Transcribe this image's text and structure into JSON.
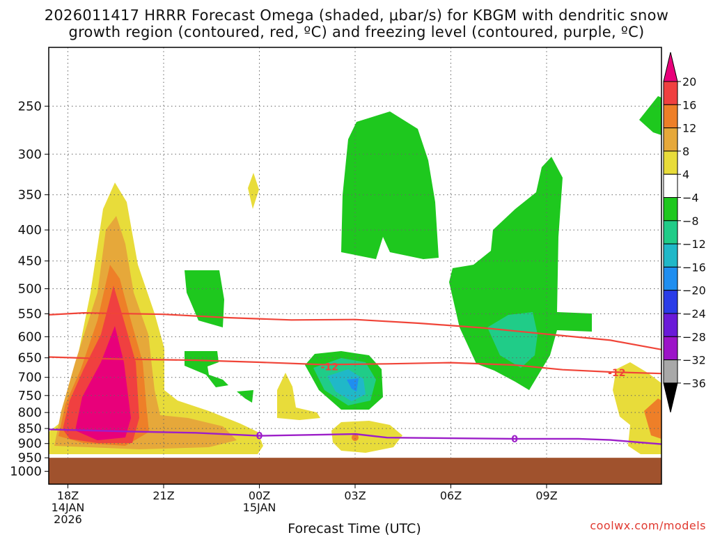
{
  "title": {
    "line1": "2026011417 HRRR Forecast Omega (shaded, μbar/s) for KBGM with dendritic snow",
    "line2": "growth region (contoured, red, ºC) and freezing level (contoured, purple, ºC)"
  },
  "credit": "coolwx.com/models",
  "chart_data": {
    "type": "contour",
    "xlabel": "Forecast Time (UTC)",
    "ylabel": "",
    "x_range_hours": [
      -0.6,
      18.6
    ],
    "y_range_hpa": [
      200,
      1050
    ],
    "y_scale": "log-pressure",
    "grid": true,
    "x_ticks": [
      {
        "h": 0,
        "lines": [
          "18Z",
          "14JAN",
          "2026"
        ]
      },
      {
        "h": 3,
        "lines": [
          "21Z"
        ]
      },
      {
        "h": 6,
        "lines": [
          "00Z",
          "15JAN"
        ]
      },
      {
        "h": 9,
        "lines": [
          "03Z"
        ]
      },
      {
        "h": 12,
        "lines": [
          "06Z"
        ]
      },
      {
        "h": 15,
        "lines": [
          "09Z"
        ]
      }
    ],
    "y_ticks": [
      250,
      300,
      350,
      400,
      450,
      500,
      550,
      600,
      650,
      700,
      750,
      800,
      850,
      900,
      950,
      1000
    ],
    "ground_pressure_hpa": 950,
    "colorbar": {
      "labels": [
        "20",
        "16",
        "12",
        "8",
        "4",
        "−4",
        "−8",
        "−12",
        "−16",
        "−20",
        "−24",
        "−28",
        "−32",
        "−36"
      ],
      "colors": [
        "#e8007a",
        "#f04040",
        "#ee7f28",
        "#e6a83a",
        "#e8dc3a",
        "#ffffff",
        "#1ec81e",
        "#20cc88",
        "#20b8c8",
        "#1f8ef0",
        "#2a3ce8",
        "#6a1ad8",
        "#9c14c8",
        "#a8a8a8",
        "#000000"
      ]
    },
    "dgz_contours": [
      {
        "value": -12,
        "label": "-12",
        "color": "#f04438",
        "points": [
          [
            -0.6,
            552
          ],
          [
            0.5,
            548
          ],
          [
            3,
            551
          ],
          [
            5,
            558
          ],
          [
            7,
            563
          ],
          [
            9,
            562
          ],
          [
            11,
            570
          ],
          [
            13,
            580
          ],
          [
            15,
            594
          ],
          [
            17,
            608
          ],
          [
            18.6,
            630
          ]
        ]
      },
      {
        "value": -12,
        "label": "-12",
        "color": "#f04438",
        "points": [
          [
            -0.6,
            648
          ],
          [
            1.5,
            653
          ],
          [
            4,
            656
          ],
          [
            6,
            661
          ],
          [
            8,
            667
          ],
          [
            10,
            665
          ],
          [
            12,
            662
          ],
          [
            14,
            668
          ],
          [
            15.5,
            680
          ],
          [
            17,
            686
          ],
          [
            18.6,
            690
          ]
        ]
      }
    ],
    "freezing_level_contour": {
      "value": 0,
      "label": "0",
      "color": "#9c1ec8",
      "points": [
        [
          -0.6,
          853
        ],
        [
          2,
          860
        ],
        [
          4,
          864
        ],
        [
          6,
          874
        ],
        [
          8,
          870
        ],
        [
          9,
          868
        ],
        [
          10,
          880
        ],
        [
          12,
          882
        ],
        [
          14,
          884
        ],
        [
          16,
          884
        ],
        [
          17,
          888
        ],
        [
          18.6,
          902
        ]
      ]
    },
    "contour_labels": [
      {
        "text": "-12",
        "h": 8.2,
        "p": 672,
        "color": "#f04438"
      },
      {
        "text": "-12",
        "h": 17.2,
        "p": 688,
        "color": "#f04438"
      },
      {
        "text": "0",
        "h": 6.0,
        "p": 874,
        "color": "#9c1ec8"
      },
      {
        "text": "0",
        "h": 14.0,
        "p": 884,
        "color": "#9c1ec8"
      }
    ]
  }
}
